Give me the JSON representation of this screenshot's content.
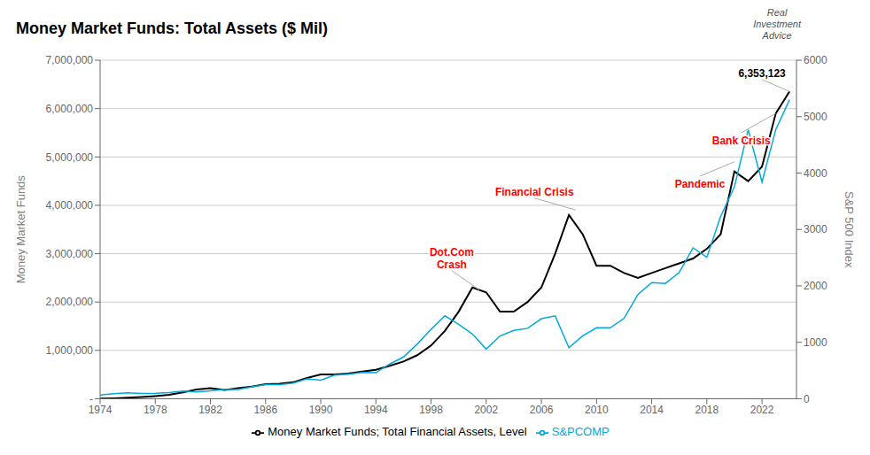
{
  "chart_data": {
    "type": "line",
    "title": "Money Market Funds: Total Assets ($ Mil)",
    "ylabel": "Money Market Funds",
    "y2label": "S&P 500 Index",
    "x": [
      1974,
      1975,
      1976,
      1977,
      1978,
      1979,
      1980,
      1981,
      1982,
      1983,
      1984,
      1985,
      1986,
      1987,
      1988,
      1989,
      1990,
      1991,
      1992,
      1993,
      1994,
      1995,
      1996,
      1997,
      1998,
      1999,
      2000,
      2001,
      2002,
      2003,
      2004,
      2005,
      2006,
      2007,
      2008,
      2009,
      2010,
      2011,
      2012,
      2013,
      2014,
      2015,
      2016,
      2017,
      2018,
      2019,
      2020,
      2021,
      2022,
      2023,
      2024
    ],
    "series": [
      {
        "name": "Money Market Funds; Total Financial Assets, Level",
        "color": "#000000",
        "values": [
          3000,
          10000,
          20000,
          35000,
          55000,
          80000,
          130000,
          190000,
          220000,
          180000,
          220000,
          250000,
          300000,
          310000,
          340000,
          430000,
          500000,
          500000,
          520000,
          560000,
          600000,
          680000,
          770000,
          900000,
          1100000,
          1400000,
          1800000,
          2300000,
          2200000,
          1800000,
          1800000,
          2000000,
          2300000,
          3000000,
          3800000,
          3400000,
          2750000,
          2750000,
          2600000,
          2500000,
          2600000,
          2700000,
          2800000,
          2900000,
          3100000,
          3400000,
          4700000,
          4500000,
          4800000,
          5900000,
          6353123
        ]
      },
      {
        "name": "S&PCOMP",
        "color": "#00aadd",
        "axis": "y2",
        "values": [
          67,
          90,
          105,
          95,
          96,
          107,
          135,
          122,
          140,
          165,
          165,
          210,
          250,
          250,
          277,
          353,
          330,
          417,
          435,
          466,
          460,
          615,
          740,
          970,
          1229,
          1469,
          1320,
          1148,
          880,
          1112,
          1212,
          1248,
          1418,
          1468,
          903,
          1115,
          1258,
          1257,
          1426,
          1848,
          2059,
          2044,
          2239,
          2674,
          2507,
          3231,
          3756,
          4766,
          3840,
          4770,
          5300
        ]
      }
    ],
    "xlim": [
      1974,
      2024.5
    ],
    "xticks": [
      1974,
      1978,
      1982,
      1986,
      1990,
      1994,
      1998,
      2002,
      2006,
      2010,
      2014,
      2018,
      2022
    ],
    "ylim": [
      0,
      7000000
    ],
    "yticks": [
      {
        "value": 0,
        "label": "-"
      },
      {
        "value": 1000000,
        "label": "1,000,000"
      },
      {
        "value": 2000000,
        "label": "2,000,000"
      },
      {
        "value": 3000000,
        "label": "3,000,000"
      },
      {
        "value": 4000000,
        "label": "4,000,000"
      },
      {
        "value": 5000000,
        "label": "5,000,000"
      },
      {
        "value": 6000000,
        "label": "6,000,000"
      },
      {
        "value": 7000000,
        "label": "7,000,000"
      }
    ],
    "y2lim": [
      0,
      6000
    ],
    "y2ticks": [
      0,
      1000,
      2000,
      3000,
      4000,
      5000,
      6000
    ],
    "grid": true,
    "legend": "bottom",
    "annotations": [
      {
        "text": "Dot.Com\nCrash",
        "xy": [
          2001.5,
          2250000
        ],
        "xytext": [
          1999.5,
          2650000
        ],
        "color": "red",
        "line_color": "#aaaaaa"
      },
      {
        "text": "Financial Crisis",
        "xy": [
          2008.5,
          3900000
        ],
        "xytext": [
          2005.5,
          4150000
        ],
        "color": "red",
        "line_color": "#aaaaaa"
      },
      {
        "text": "Pandemic",
        "xy": [
          2020.0,
          4900000
        ],
        "xytext": [
          2017.5,
          4600000
        ],
        "color": "red",
        "line_color": "#aaaaaa"
      },
      {
        "text": "Bank Crisis",
        "xy": [
          2023.0,
          5900000
        ],
        "xytext": [
          2020.5,
          5500000
        ],
        "color": "red",
        "line_color": "#aaaaaa"
      },
      {
        "text": "6,353,123",
        "xy": [
          2024,
          6353123
        ],
        "xytext": [
          2022.0,
          6600000
        ],
        "color": "black",
        "line_color": "#aaaaaa"
      },
      {
        "text": "Real\nInvestment\nAdvice",
        "color": "#555555"
      }
    ]
  }
}
